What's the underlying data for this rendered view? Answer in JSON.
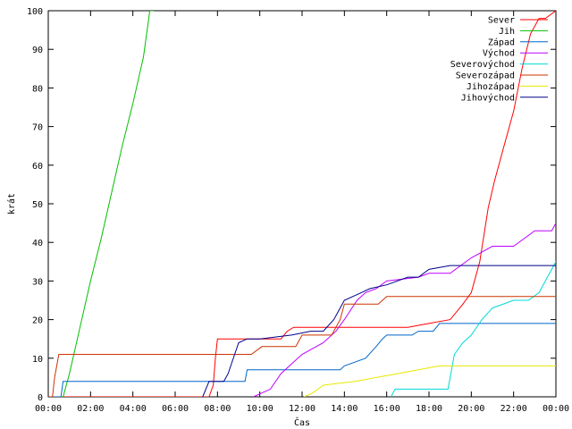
{
  "chart_data": {
    "type": "line",
    "title": "",
    "xlabel": "Čas",
    "ylabel": "krát",
    "xlim": [
      0,
      24
    ],
    "ylim": [
      0,
      100
    ],
    "grid": false,
    "legend_position": "top-right",
    "x_tick_labels": [
      "00:00",
      "02:00",
      "04:00",
      "06:00",
      "08:00",
      "10:00",
      "12:00",
      "14:00",
      "16:00",
      "18:00",
      "20:00",
      "22:00",
      "00:00"
    ],
    "y_tick_labels": [
      "0",
      "10",
      "20",
      "30",
      "40",
      "50",
      "60",
      "70",
      "80",
      "90",
      "100"
    ],
    "series": [
      {
        "name": "Sever",
        "color": "#ff0000",
        "x": [
          0.0,
          0.2,
          7.6,
          7.8,
          7.9,
          8.0,
          11.0,
          11.3,
          11.6,
          16.0,
          17.0,
          18.0,
          19.0,
          19.6,
          20.0,
          20.4,
          20.8,
          21.1,
          21.5,
          22.0,
          22.4,
          22.8,
          23.2,
          23.5,
          24.0
        ],
        "y": [
          0,
          0,
          0,
          3,
          10,
          15,
          15,
          17,
          18,
          18,
          18,
          19,
          20,
          24,
          27,
          35,
          49,
          56,
          64,
          74,
          85,
          94,
          98,
          98,
          100
        ]
      },
      {
        "name": "Jih",
        "color": "#00c000",
        "x": [
          0.0,
          0.7,
          1.0,
          1.5,
          2.0,
          2.5,
          3.0,
          3.5,
          4.0,
          4.5,
          4.8,
          5.0
        ],
        "y": [
          0,
          0,
          6,
          18,
          30,
          41,
          53,
          65,
          76,
          88,
          100,
          100
        ]
      },
      {
        "name": "Západ",
        "color": "#0066cc",
        "x": [
          0.0,
          0.6,
          0.7,
          9.3,
          9.4,
          13.8,
          14.0,
          15.0,
          15.5,
          15.8,
          16.0,
          17.2,
          17.5,
          18.2,
          18.5,
          20.0,
          24.0
        ],
        "y": [
          0,
          0,
          4,
          4,
          7,
          7,
          8,
          10,
          13,
          15,
          16,
          16,
          17,
          17,
          19,
          19,
          19
        ]
      },
      {
        "name": "Východ",
        "color": "#bf00ff",
        "x": [
          9.7,
          10.5,
          11.0,
          11.6,
          12.0,
          13.0,
          13.6,
          14.0,
          14.6,
          15.0,
          15.5,
          16.0,
          17.5,
          18.0,
          19.0,
          20.0,
          21.0,
          22.0,
          23.0,
          23.8,
          24.0
        ],
        "y": [
          0,
          2,
          6,
          9,
          11,
          14,
          17,
          20,
          25,
          27,
          28,
          30,
          31,
          32,
          32,
          36,
          39,
          39,
          43,
          43,
          45
        ]
      },
      {
        "name": "Severovýchod",
        "color": "#00d8d8",
        "x": [
          16.2,
          16.4,
          18.9,
          19.2,
          19.6,
          20.0,
          20.5,
          21.0,
          22.0,
          22.7,
          23.2,
          23.6,
          24.0
        ],
        "y": [
          0,
          2,
          2,
          11,
          14,
          16,
          20,
          23,
          25,
          25,
          27,
          31,
          35
        ]
      },
      {
        "name": "Severozápad",
        "color": "#cc3300",
        "x": [
          0.0,
          0.2,
          0.3,
          0.5,
          7.5,
          8.2,
          9.6,
          10.1,
          11.7,
          12.0,
          13.4,
          13.8,
          14.0,
          15.0,
          15.6,
          16.0,
          17.0,
          24.0
        ],
        "y": [
          0,
          0,
          5,
          11,
          11,
          11,
          11,
          13,
          13,
          16,
          16,
          20,
          24,
          24,
          24,
          26,
          26,
          26
        ]
      },
      {
        "name": "Jihozápad",
        "color": "#e8e800",
        "x": [
          12.1,
          12.5,
          13.0,
          14.5,
          15.5,
          16.5,
          17.5,
          18.5,
          24.0
        ],
        "y": [
          0,
          1,
          3,
          4,
          5,
          6,
          7,
          8,
          8
        ]
      },
      {
        "name": "Jihovýchod",
        "color": "#00008b",
        "x": [
          7.3,
          7.6,
          8.3,
          8.5,
          9.0,
          9.4,
          10.0,
          11.5,
          12.4,
          13.0,
          13.5,
          14.0,
          14.8,
          15.2,
          16.0,
          17.0,
          17.5,
          18.0,
          19.0,
          20.0,
          21.0,
          24.0
        ],
        "y": [
          0,
          4,
          4,
          6,
          14,
          15,
          15,
          16,
          17,
          17,
          20,
          25,
          27,
          28,
          29,
          31,
          31,
          33,
          34,
          34,
          34,
          34
        ]
      }
    ]
  }
}
